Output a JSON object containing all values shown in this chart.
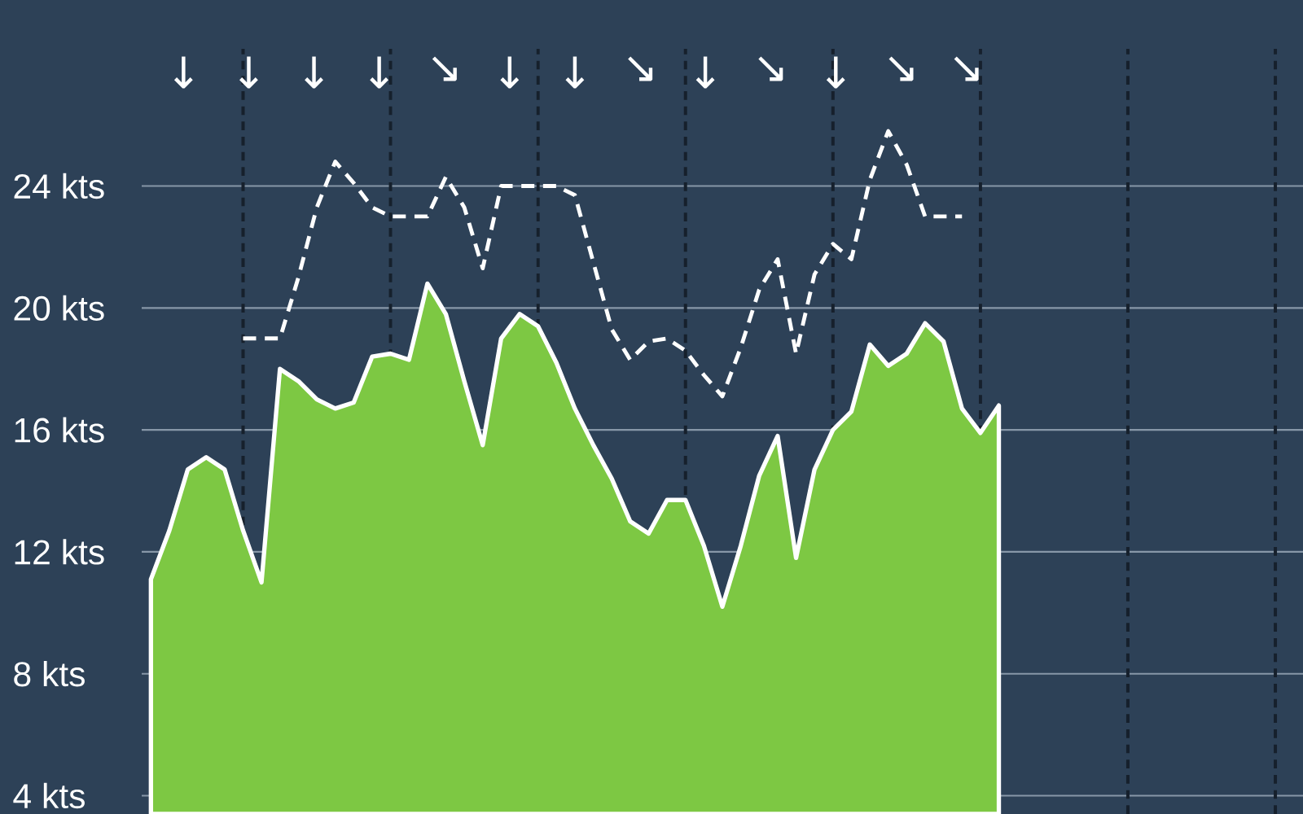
{
  "chart_data": {
    "type": "area",
    "ylim": [
      3.4,
      28.5
    ],
    "yticks": [
      {
        "value": 4,
        "label": "4 kts"
      },
      {
        "value": 8,
        "label": "8 kts"
      },
      {
        "value": 12,
        "label": "12 kts"
      },
      {
        "value": 16,
        "label": "16 kts"
      },
      {
        "value": 20,
        "label": "20 kts"
      },
      {
        "value": 24,
        "label": "24 kts"
      }
    ],
    "tick_labels": "y",
    "grid": true,
    "categories": [
      null,
      null,
      null,
      null,
      null,
      null,
      null,
      null,
      null,
      null,
      null,
      null,
      null,
      null,
      null,
      null,
      null,
      null,
      null,
      null,
      null,
      null,
      null,
      null,
      null,
      null,
      null,
      null,
      null,
      null,
      null,
      null,
      null,
      null,
      null,
      null,
      null,
      null,
      null,
      null,
      null,
      null,
      null,
      null,
      null,
      null,
      null,
      null,
      null,
      null,
      null,
      null,
      null,
      null,
      null,
      null,
      null,
      null,
      null,
      null,
      null,
      null,
      null
    ],
    "annotations": [
      "↓",
      "↓",
      "↓",
      "↓",
      "↘",
      "↓",
      "↓",
      "↘",
      "↓",
      "↘",
      "↓",
      "↘",
      "↘"
    ],
    "series": [
      {
        "color": "#7dc843",
        "values": [
          11.1,
          12.7,
          14.7,
          15.1,
          14.7,
          12.7,
          11.0,
          18.0,
          17.6,
          17.0,
          16.7,
          16.9,
          18.4,
          18.5,
          18.3,
          20.8,
          19.8,
          17.6,
          15.5,
          19.0,
          19.8,
          19.4,
          18.2,
          16.7,
          15.5,
          14.4,
          13.0,
          12.6,
          13.7,
          13.7,
          12.2,
          10.2,
          12.2,
          14.5,
          15.8,
          11.8,
          14.7,
          16.0,
          16.6,
          18.8,
          18.1,
          18.5,
          19.5,
          18.9,
          16.7,
          15.9,
          16.8,
          null,
          null,
          null,
          null,
          null,
          null,
          null,
          null,
          null,
          null,
          null,
          null,
          null,
          null,
          null,
          null
        ]
      },
      {
        "type": "line",
        "color": "#ffffff",
        "line_style": "dashed",
        "values": [
          null,
          null,
          null,
          null,
          null,
          19,
          19,
          19,
          21.0,
          23.3,
          24.8,
          24.1,
          23.3,
          23,
          23,
          23,
          24.3,
          23.3,
          21.3,
          24,
          24,
          24,
          24,
          23.7,
          21.5,
          19.3,
          18.3,
          18.9,
          19,
          18.6,
          17.8,
          17.1,
          18.7,
          20.6,
          21.6,
          18.5,
          21.1,
          22.1,
          21.6,
          24.2,
          25.8,
          24.7,
          23,
          23,
          23,
          null,
          null,
          null,
          null,
          null,
          null,
          null,
          null,
          null,
          null,
          null,
          null,
          null,
          null,
          null,
          null,
          null,
          null
        ]
      }
    ]
  }
}
